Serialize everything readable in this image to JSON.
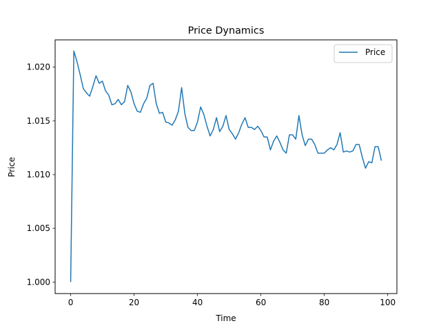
{
  "chart_data": {
    "type": "line",
    "title": "Price Dynamics",
    "xlabel": "Time",
    "ylabel": "Price",
    "xlim": [
      -4.9,
      102.9
    ],
    "ylim": [
      0.99893,
      1.02254
    ],
    "xticks": [
      0,
      20,
      40,
      60,
      80,
      100
    ],
    "yticks": [
      1.0,
      1.005,
      1.01,
      1.015,
      1.02
    ],
    "ytick_labels": [
      "1.000",
      "1.005",
      "1.010",
      "1.015",
      "1.020"
    ],
    "grid": false,
    "legend_position": "top-right",
    "series": [
      {
        "name": "Price",
        "color": "#1f77b4",
        "x": [
          0,
          1,
          2,
          3,
          4,
          5,
          6,
          7,
          8,
          9,
          10,
          11,
          12,
          13,
          14,
          15,
          16,
          17,
          18,
          19,
          20,
          21,
          22,
          23,
          24,
          25,
          26,
          27,
          28,
          29,
          30,
          31,
          32,
          33,
          34,
          35,
          36,
          37,
          38,
          39,
          40,
          41,
          42,
          43,
          44,
          45,
          46,
          47,
          48,
          49,
          50,
          51,
          52,
          53,
          54,
          55,
          56,
          57,
          58,
          59,
          60,
          61,
          62,
          63,
          64,
          65,
          66,
          67,
          68,
          69,
          70,
          71,
          72,
          73,
          74,
          75,
          76,
          77,
          78,
          79,
          80,
          81,
          82,
          83,
          84,
          85,
          86,
          87,
          88,
          89,
          90,
          91,
          92,
          93,
          94,
          95,
          96,
          97,
          98
        ],
        "y": [
          1.0,
          1.0215,
          1.0205,
          1.0193,
          1.018,
          1.0176,
          1.0173,
          1.0182,
          1.0192,
          1.0185,
          1.0187,
          1.0178,
          1.0174,
          1.0165,
          1.0166,
          1.017,
          1.0165,
          1.0168,
          1.0183,
          1.0177,
          1.0166,
          1.0159,
          1.0158,
          1.0166,
          1.0171,
          1.0183,
          1.0185,
          1.0166,
          1.0157,
          1.0158,
          1.0149,
          1.0148,
          1.0146,
          1.0151,
          1.0159,
          1.0181,
          1.0157,
          1.0144,
          1.0141,
          1.0141,
          1.0149,
          1.0163,
          1.0156,
          1.0145,
          1.0136,
          1.0142,
          1.0153,
          1.014,
          1.0145,
          1.0155,
          1.0142,
          1.0138,
          1.0133,
          1.0139,
          1.0147,
          1.0153,
          1.0144,
          1.0144,
          1.0142,
          1.0145,
          1.0141,
          1.0135,
          1.0135,
          1.0123,
          1.0131,
          1.0136,
          1.013,
          1.0123,
          1.012,
          1.0137,
          1.0137,
          1.0133,
          1.0155,
          1.0137,
          1.0127,
          1.0133,
          1.0133,
          1.0128,
          1.012,
          1.012,
          1.012,
          1.0123,
          1.0125,
          1.0123,
          1.0128,
          1.0139,
          1.0121,
          1.0122,
          1.0121,
          1.0122,
          1.0128,
          1.0128,
          1.0116,
          1.0106,
          1.0112,
          1.0111,
          1.0126,
          1.0126,
          1.0113
        ]
      }
    ]
  }
}
